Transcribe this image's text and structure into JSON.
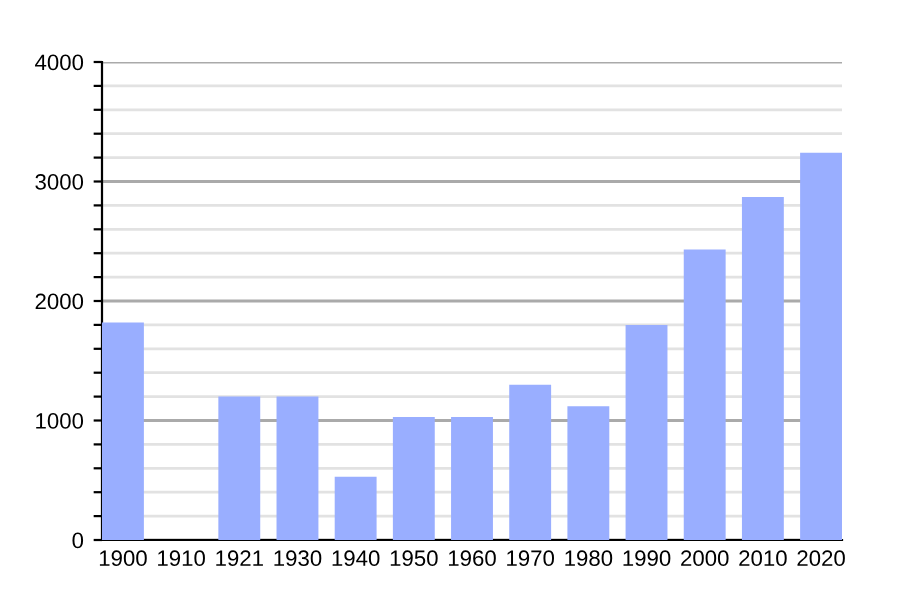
{
  "chart_data": {
    "type": "bar",
    "categories": [
      "1900",
      "1910",
      "1921",
      "1930",
      "1940",
      "1950",
      "1960",
      "1970",
      "1980",
      "1990",
      "2000",
      "2010",
      "2020"
    ],
    "values": [
      1820,
      null,
      1200,
      1200,
      530,
      1030,
      1030,
      1300,
      1120,
      1800,
      2430,
      2870,
      3240
    ],
    "color": "#99aeff",
    "ylim": [
      0,
      4000
    ],
    "yticks": [
      0,
      {
        "value": 200,
        "label": null
      },
      {
        "value": 400,
        "label": null
      },
      {
        "value": 600,
        "label": null
      },
      {
        "value": 800,
        "label": null
      },
      1000,
      {
        "value": 1200,
        "label": null
      },
      {
        "value": 1400,
        "label": null
      },
      {
        "value": 1600,
        "label": null
      },
      {
        "value": 1800,
        "label": null
      },
      2000,
      {
        "value": 2200,
        "label": null
      },
      {
        "value": 2400,
        "label": null
      },
      {
        "value": 2600,
        "label": null
      },
      {
        "value": 2800,
        "label": null
      },
      3000,
      {
        "value": 3200,
        "label": null
      },
      {
        "value": 3400,
        "label": null
      },
      {
        "value": 3600,
        "label": null
      },
      {
        "value": 3800,
        "label": null
      },
      4000
    ],
    "grid": "y"
  }
}
